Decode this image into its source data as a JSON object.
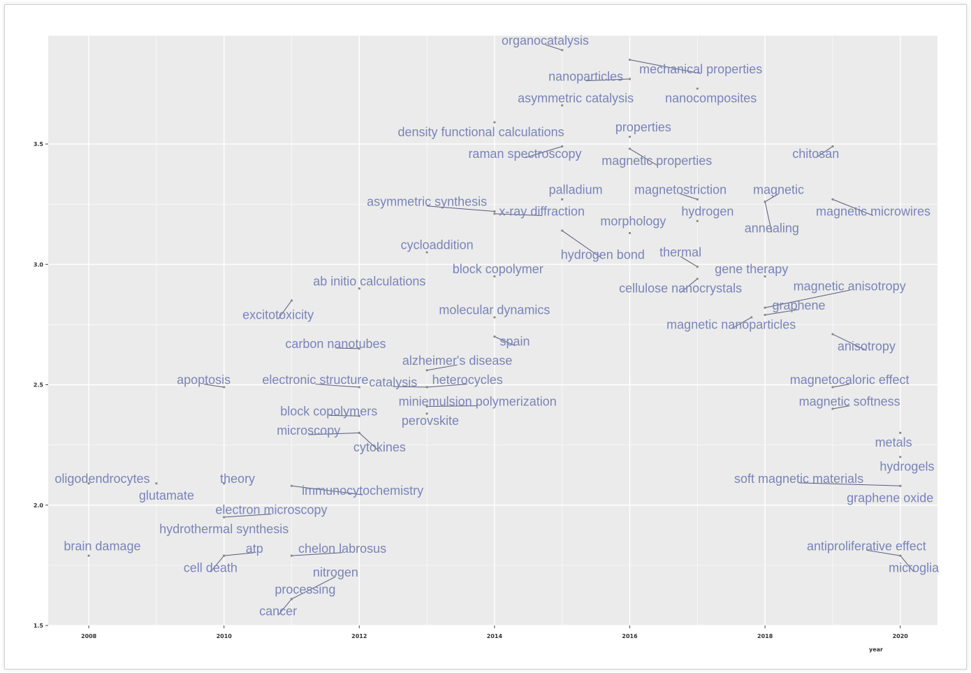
{
  "chart_data": {
    "type": "scatter",
    "x_ticks": [
      "2008",
      "2010",
      "2012",
      "2014",
      "2016",
      "2018",
      "2020"
    ],
    "y_ticks": [
      "1.5",
      "2.0",
      "2.5",
      "3.0",
      "3.5"
    ],
    "x_ticks_values": [
      2008,
      2010,
      2012,
      2014,
      2016,
      2018,
      2020
    ],
    "y_ticks_values": [
      1.5,
      2.0,
      2.5,
      3.0,
      3.5
    ],
    "xlim": [
      2007.4,
      2020.55
    ],
    "ylim": [
      1.5,
      3.95
    ],
    "grid": true,
    "xlabel": "year",
    "colors": {
      "label": "#7a84b8",
      "point": "#8a8a8a",
      "panel": "#ebebeb",
      "grid": "#ffffff"
    },
    "points": [
      {
        "label": "organocatalysis",
        "x": 2015.0,
        "y": 3.89,
        "lx": 2014.75,
        "ly": 3.93
      },
      {
        "label": "mechanical properties",
        "x": 2016.0,
        "y": 3.85,
        "lx": 2017.05,
        "ly": 3.81
      },
      {
        "label": "nanoparticles",
        "x": 2016.0,
        "y": 3.77,
        "lx": 2015.35,
        "ly": 3.78
      },
      {
        "label": "asymmetric catalysis",
        "x": 2015.0,
        "y": 3.66,
        "lx": 2015.2,
        "ly": 3.69
      },
      {
        "label": "nanocomposites",
        "x": 2017.0,
        "y": 3.73,
        "lx": 2017.2,
        "ly": 3.69
      },
      {
        "label": "properties",
        "x": 2016.0,
        "y": 3.53,
        "lx": 2016.2,
        "ly": 3.57
      },
      {
        "label": "density functional calculations",
        "x": 2014.0,
        "y": 3.59,
        "lx": 2013.8,
        "ly": 3.55
      },
      {
        "label": "raman spectroscopy",
        "x": 2015.0,
        "y": 3.49,
        "lx": 2014.45,
        "ly": 3.46
      },
      {
        "label": "magnetic properties",
        "x": 2016.0,
        "y": 3.48,
        "lx": 2016.4,
        "ly": 3.43
      },
      {
        "label": "chitosan",
        "x": 2019.0,
        "y": 3.49,
        "lx": 2018.75,
        "ly": 3.46
      },
      {
        "label": "palladium",
        "x": 2015.0,
        "y": 3.27,
        "lx": 2015.2,
        "ly": 3.31
      },
      {
        "label": "magnetostriction",
        "x": 2017.0,
        "y": 3.27,
        "lx": 2016.75,
        "ly": 3.31
      },
      {
        "label": "magnetic",
        "x": 2018.0,
        "y": 3.26,
        "lx": 2018.2,
        "ly": 3.31
      },
      {
        "label": "asymmetric synthesis",
        "x": 2014.0,
        "y": 3.22,
        "lx": 2013.0,
        "ly": 3.26
      },
      {
        "label": "x-ray diffraction",
        "x": 2014.0,
        "y": 3.21,
        "lx": 2014.7,
        "ly": 3.22
      },
      {
        "label": "magnetic microwires",
        "x": 2019.0,
        "y": 3.27,
        "lx": 2019.6,
        "ly": 3.22
      },
      {
        "label": "hydrogen",
        "x": 2017.0,
        "y": 3.18,
        "lx": 2017.15,
        "ly": 3.22
      },
      {
        "label": "morphology",
        "x": 2016.0,
        "y": 3.13,
        "lx": 2016.05,
        "ly": 3.18
      },
      {
        "label": "annealing",
        "x": 2018.0,
        "y": 3.26,
        "lx": 2018.1,
        "ly": 3.15
      },
      {
        "label": "cycloaddition",
        "x": 2013.0,
        "y": 3.05,
        "lx": 2013.15,
        "ly": 3.08
      },
      {
        "label": "hydrogen bond",
        "x": 2015.0,
        "y": 3.14,
        "lx": 2015.6,
        "ly": 3.04
      },
      {
        "label": "thermal",
        "x": 2017.0,
        "y": 2.99,
        "lx": 2016.75,
        "ly": 3.05
      },
      {
        "label": "block copolymer",
        "x": 2014.0,
        "y": 2.95,
        "lx": 2014.05,
        "ly": 2.98
      },
      {
        "label": "gene therapy",
        "x": 2018.0,
        "y": 2.95,
        "lx": 2017.8,
        "ly": 2.98
      },
      {
        "label": "ab initio calculations",
        "x": 2012.0,
        "y": 2.9,
        "lx": 2012.15,
        "ly": 2.93
      },
      {
        "label": "cellulose nanocrystals",
        "x": 2017.0,
        "y": 2.94,
        "lx": 2016.75,
        "ly": 2.9
      },
      {
        "label": "magnetic anisotropy",
        "x": 2018.0,
        "y": 2.82,
        "lx": 2019.25,
        "ly": 2.91
      },
      {
        "label": "graphene",
        "x": 2018.0,
        "y": 2.79,
        "lx": 2018.5,
        "ly": 2.83
      },
      {
        "label": "excitotoxicity",
        "x": 2011.0,
        "y": 2.85,
        "lx": 2010.8,
        "ly": 2.79
      },
      {
        "label": "molecular dynamics",
        "x": 2014.0,
        "y": 2.78,
        "lx": 2014.0,
        "ly": 2.81
      },
      {
        "label": "magnetic nanoparticles",
        "x": 2017.8,
        "y": 2.78,
        "lx": 2017.5,
        "ly": 2.75
      },
      {
        "label": "carbon nanotubes",
        "x": 2012.0,
        "y": 2.65,
        "lx": 2011.65,
        "ly": 2.67
      },
      {
        "label": "spain",
        "x": 2014.0,
        "y": 2.7,
        "lx": 2014.3,
        "ly": 2.68
      },
      {
        "label": "anisotropy",
        "x": 2019.0,
        "y": 2.71,
        "lx": 2019.5,
        "ly": 2.66
      },
      {
        "label": "alzheimer's disease",
        "x": 2013.0,
        "y": 2.56,
        "lx": 2013.45,
        "ly": 2.6
      },
      {
        "label": "apoptosis",
        "x": 2010.0,
        "y": 2.49,
        "lx": 2009.7,
        "ly": 2.52
      },
      {
        "label": "electronic structure",
        "x": 2012.0,
        "y": 2.49,
        "lx": 2011.35,
        "ly": 2.52
      },
      {
        "label": "catalysis",
        "x": 2013.0,
        "y": 2.49,
        "lx": 2012.5,
        "ly": 2.51
      },
      {
        "label": "heterocycles",
        "x": 2013.0,
        "y": 2.49,
        "lx": 2013.6,
        "ly": 2.52
      },
      {
        "label": "magnetocaloric effect",
        "x": 2019.0,
        "y": 2.49,
        "lx": 2019.25,
        "ly": 2.52
      },
      {
        "label": "miniemulsion polymerization",
        "x": 2013.0,
        "y": 2.41,
        "lx": 2013.75,
        "ly": 2.43
      },
      {
        "label": "magnetic softness",
        "x": 2019.0,
        "y": 2.4,
        "lx": 2019.25,
        "ly": 2.43
      },
      {
        "label": "block copolymers",
        "x": 2012.0,
        "y": 2.37,
        "lx": 2011.55,
        "ly": 2.39
      },
      {
        "label": "perovskite",
        "x": 2013.0,
        "y": 2.38,
        "lx": 2013.05,
        "ly": 2.35
      },
      {
        "label": "microscopy",
        "x": 2012.0,
        "y": 2.3,
        "lx": 2011.25,
        "ly": 2.31
      },
      {
        "label": "metals",
        "x": 2020.0,
        "y": 2.3,
        "lx": 2019.9,
        "ly": 2.26
      },
      {
        "label": "cytokines",
        "x": 2012.0,
        "y": 2.3,
        "lx": 2012.3,
        "ly": 2.24
      },
      {
        "label": "hydrogels",
        "x": 2020.0,
        "y": 2.2,
        "lx": 2020.1,
        "ly": 2.16
      },
      {
        "label": "oligodendrocytes",
        "x": 2008.0,
        "y": 2.09,
        "lx": 2008.2,
        "ly": 2.11
      },
      {
        "label": "theory",
        "x": 2010.0,
        "y": 2.09,
        "lx": 2010.2,
        "ly": 2.11
      },
      {
        "label": "soft magnetic materials",
        "x": 2020.0,
        "y": 2.08,
        "lx": 2018.5,
        "ly": 2.11
      },
      {
        "label": "glutamate",
        "x": 2009.0,
        "y": 2.09,
        "lx": 2009.15,
        "ly": 2.04
      },
      {
        "label": "immunocytochemistry",
        "x": 2011.0,
        "y": 2.08,
        "lx": 2012.05,
        "ly": 2.06
      },
      {
        "label": "graphene oxide",
        "x": 2020.0,
        "y": 2.08,
        "lx": 2019.85,
        "ly": 2.03
      },
      {
        "label": "electron microscopy",
        "x": 2010.0,
        "y": 1.95,
        "lx": 2010.7,
        "ly": 1.98
      },
      {
        "label": "hydrothermal synthesis",
        "x": 2010.0,
        "y": 1.95,
        "lx": 2010.0,
        "ly": 1.9
      },
      {
        "label": "brain damage",
        "x": 2008.0,
        "y": 1.79,
        "lx": 2008.2,
        "ly": 1.83
      },
      {
        "label": "atp",
        "x": 2010.0,
        "y": 1.79,
        "lx": 2010.45,
        "ly": 1.82
      },
      {
        "label": "chelon labrosus",
        "x": 2011.0,
        "y": 1.79,
        "lx": 2011.75,
        "ly": 1.82
      },
      {
        "label": "antiproliferative effect",
        "x": 2020.0,
        "y": 1.79,
        "lx": 2019.5,
        "ly": 1.83
      },
      {
        "label": "cell death",
        "x": 2010.0,
        "y": 1.79,
        "lx": 2009.8,
        "ly": 1.74
      },
      {
        "label": "microglia",
        "x": 2020.0,
        "y": 1.79,
        "lx": 2020.2,
        "ly": 1.74
      },
      {
        "label": "nitrogen",
        "x": 2011.0,
        "y": 1.61,
        "lx": 2011.65,
        "ly": 1.72
      },
      {
        "label": "processing",
        "x": 2011.0,
        "y": 1.61,
        "lx": 2011.2,
        "ly": 1.65
      },
      {
        "label": "cancer",
        "x": 2011.0,
        "y": 1.61,
        "lx": 2010.8,
        "ly": 1.56
      }
    ]
  }
}
